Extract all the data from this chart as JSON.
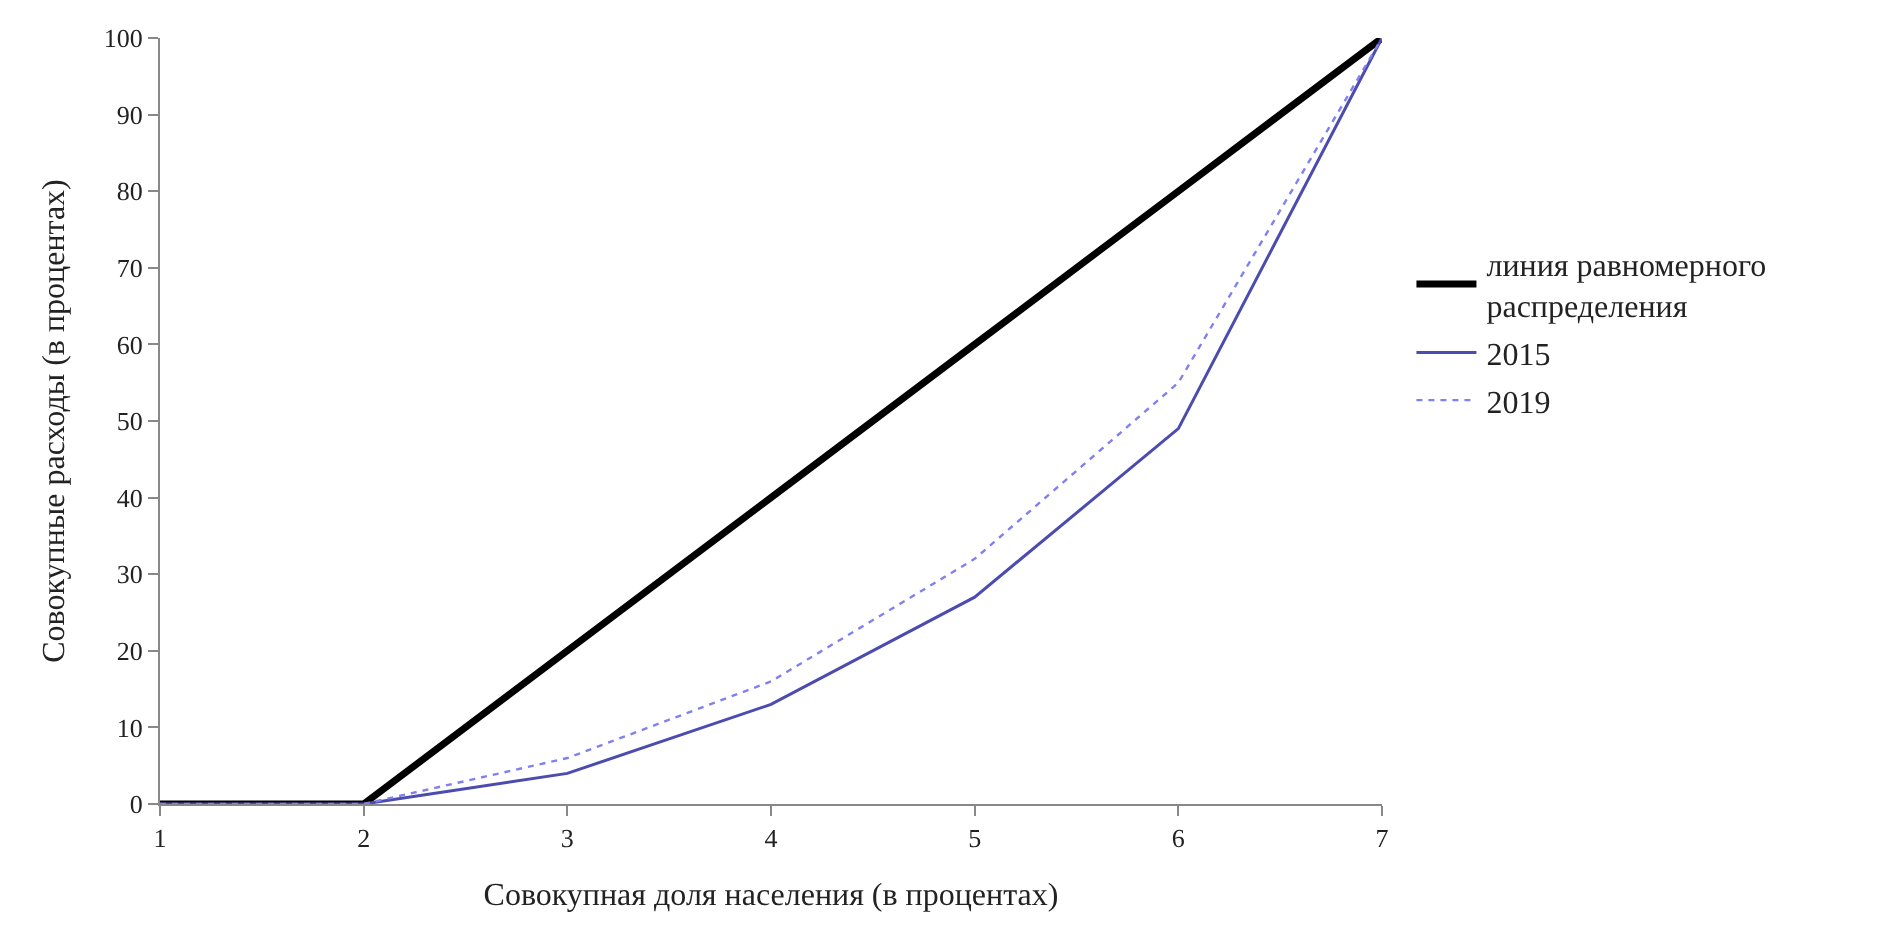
{
  "chart_data": {
    "type": "line",
    "xlabel": "Совокупная доля населения (в процентах)",
    "ylabel": "Совокупные расходы (в процентах)",
    "x": [
      1,
      2,
      3,
      4,
      5,
      6,
      7
    ],
    "xlim": [
      1,
      7
    ],
    "xticks": [
      1,
      2,
      3,
      4,
      5,
      6,
      7
    ],
    "ylim": [
      0,
      100
    ],
    "yticks": [
      0,
      10,
      20,
      30,
      40,
      50,
      60,
      70,
      80,
      90,
      100
    ],
    "legend": "right",
    "marker": "none",
    "series": [
      {
        "name": "линия равномерного\nраспределения",
        "color": "#000000",
        "line_style": "solid",
        "values": [
          0,
          0,
          20,
          40,
          60,
          80,
          100
        ]
      },
      {
        "name": "2015",
        "color": "#4b4bb0",
        "line_style": "solid",
        "values": [
          0,
          0,
          4,
          13,
          27,
          49,
          100
        ]
      },
      {
        "name": "2019",
        "color": "#8080f0",
        "line_style": "dotted",
        "values": [
          0,
          0,
          6,
          16,
          32,
          55,
          100
        ]
      }
    ]
  }
}
